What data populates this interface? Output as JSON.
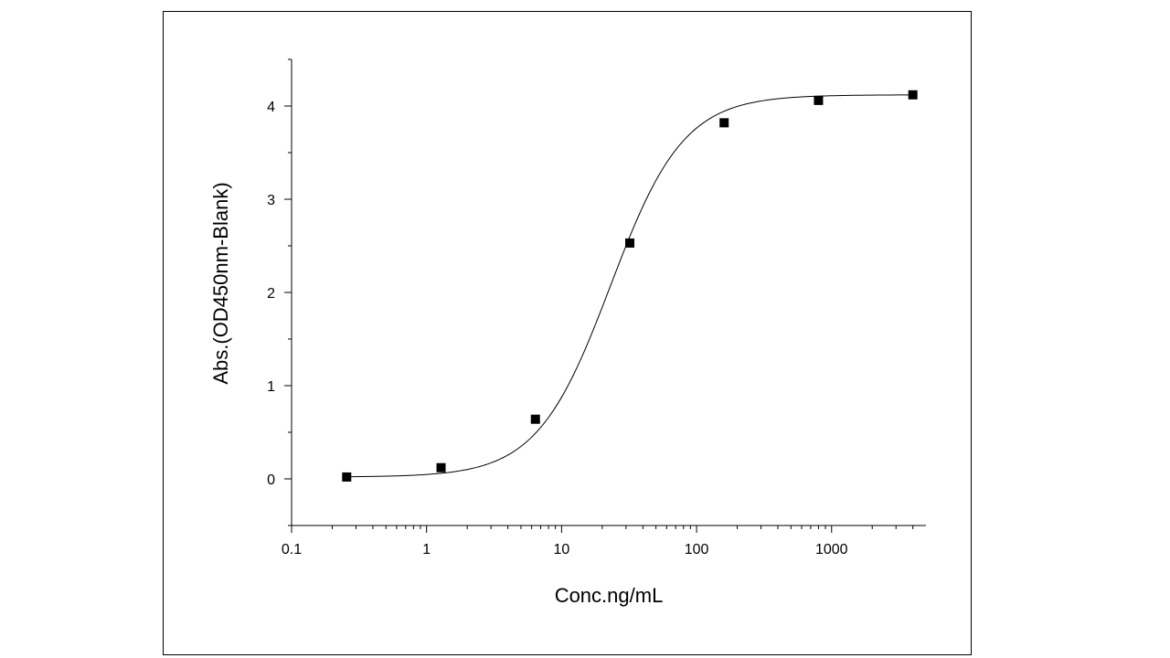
{
  "chart_data": {
    "type": "scatter",
    "xlabel": "Conc.ng/mL",
    "ylabel": "Abs.(OD450nm-Blank)",
    "xscale": "log",
    "xlim": [
      0.1,
      5000
    ],
    "ylim": [
      -0.5,
      4.5
    ],
    "x_ticks": [
      {
        "value": 0.1,
        "label": "0.1"
      },
      {
        "value": 1,
        "label": "1"
      },
      {
        "value": 10,
        "label": "10"
      },
      {
        "value": 100,
        "label": "100"
      },
      {
        "value": 1000,
        "label": "1000"
      }
    ],
    "y_ticks": [
      {
        "value": 0,
        "label": "0"
      },
      {
        "value": 1,
        "label": "1"
      },
      {
        "value": 2,
        "label": "2"
      },
      {
        "value": 3,
        "label": "3"
      },
      {
        "value": 4,
        "label": "4"
      }
    ],
    "grid": false,
    "legend": "none",
    "points": [
      {
        "x": 0.256,
        "y": 0.02
      },
      {
        "x": 1.28,
        "y": 0.12
      },
      {
        "x": 6.4,
        "y": 0.64
      },
      {
        "x": 32,
        "y": 2.53
      },
      {
        "x": 160,
        "y": 3.82
      },
      {
        "x": 800,
        "y": 4.06
      },
      {
        "x": 4000,
        "y": 4.12
      }
    ],
    "fit_curve": {
      "model": "4PL",
      "bottom": 0.02,
      "top": 4.12,
      "ec50": 23,
      "hill": 1.6
    },
    "colors": {
      "marker": "#000000",
      "line": "#000000"
    }
  }
}
